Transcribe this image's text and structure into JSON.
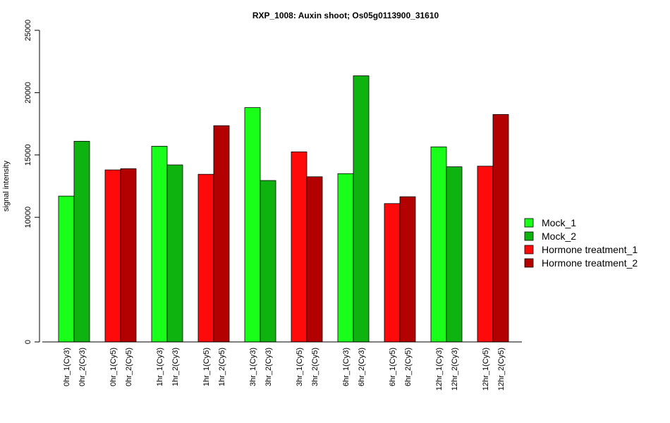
{
  "chart_data": {
    "type": "bar",
    "title": "RXP_1008: Auxin shoot; Os05g0113900_31610",
    "xlabel": "",
    "ylabel": "signal intensity",
    "ylim": [
      0,
      25000
    ],
    "yticks": [
      0,
      10000,
      15000,
      20000,
      25000
    ],
    "ytick_labels": [
      "0",
      "10000",
      "15000",
      "20000",
      "25000"
    ],
    "grid": false,
    "legend_position": "right",
    "legend": [
      {
        "name": "Mock_1",
        "color": "#1aff1a"
      },
      {
        "name": "Mock_2",
        "color": "#0fb30f"
      },
      {
        "name": "Hormone treatment_1",
        "color": "#ff0a0a"
      },
      {
        "name": "Hormone treatment_2",
        "color": "#b30000"
      }
    ],
    "bars": [
      {
        "label": "0hr_1(Cy3)",
        "value": 11700,
        "series": 0
      },
      {
        "label": "0hr_2(Cy3)",
        "value": 16100,
        "series": 1
      },
      {
        "label": "0hr_1(Cy5)",
        "value": 13800,
        "series": 2
      },
      {
        "label": "0hr_2(Cy5)",
        "value": 13900,
        "series": 3
      },
      {
        "label": "1hr_1(Cy3)",
        "value": 15700,
        "series": 0
      },
      {
        "label": "1hr_2(Cy3)",
        "value": 14200,
        "series": 1
      },
      {
        "label": "1hr_1(Cy5)",
        "value": 13450,
        "series": 2
      },
      {
        "label": "1hr_2(Cy5)",
        "value": 17350,
        "series": 3
      },
      {
        "label": "3hr_1(Cy3)",
        "value": 18800,
        "series": 0
      },
      {
        "label": "3hr_2(Cy3)",
        "value": 12950,
        "series": 1
      },
      {
        "label": "3hr_1(Cy5)",
        "value": 15250,
        "series": 2
      },
      {
        "label": "3hr_2(Cy5)",
        "value": 13250,
        "series": 3
      },
      {
        "label": "6hr_1(Cy3)",
        "value": 13500,
        "series": 0
      },
      {
        "label": "6hr_2(Cy3)",
        "value": 21350,
        "series": 1
      },
      {
        "label": "6hr_1(Cy5)",
        "value": 11100,
        "series": 2
      },
      {
        "label": "6hr_2(Cy5)",
        "value": 11650,
        "series": 3
      },
      {
        "label": "12hr_1(Cy3)",
        "value": 15650,
        "series": 0
      },
      {
        "label": "12hr_2(Cy3)",
        "value": 14050,
        "series": 1
      },
      {
        "label": "12hr_1(Cy5)",
        "value": 14100,
        "series": 2
      },
      {
        "label": "12hr_2(Cy5)",
        "value": 18250,
        "series": 3
      }
    ]
  }
}
